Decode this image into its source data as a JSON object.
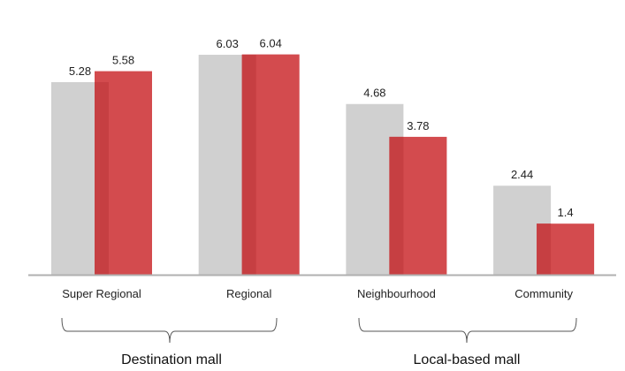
{
  "chart_data": {
    "type": "bar",
    "categories": [
      "Super Regional",
      "Regional",
      "Neighbourhood",
      "Community"
    ],
    "series": [
      {
        "values": [
          5.28,
          6.03,
          4.68,
          2.44
        ],
        "color": "#d0d0d0"
      },
      {
        "values": [
          5.58,
          6.04,
          3.78,
          1.4
        ],
        "color": "#d34b4e"
      }
    ],
    "data_labels": [
      [
        "5.28",
        "6.03",
        "4.68",
        "2.44"
      ],
      [
        "5.58",
        "6.04",
        "3.78",
        "1.4"
      ]
    ],
    "groups": [
      {
        "label": "Destination mall",
        "categories": [
          "Super Regional",
          "Regional"
        ]
      },
      {
        "label": "Local-based mall",
        "categories": [
          "Neighbourhood",
          "Community"
        ]
      }
    ],
    "overlap_color": "#c63f42",
    "ylim": [
      0,
      6.04
    ],
    "grid": false,
    "legend": "none"
  }
}
